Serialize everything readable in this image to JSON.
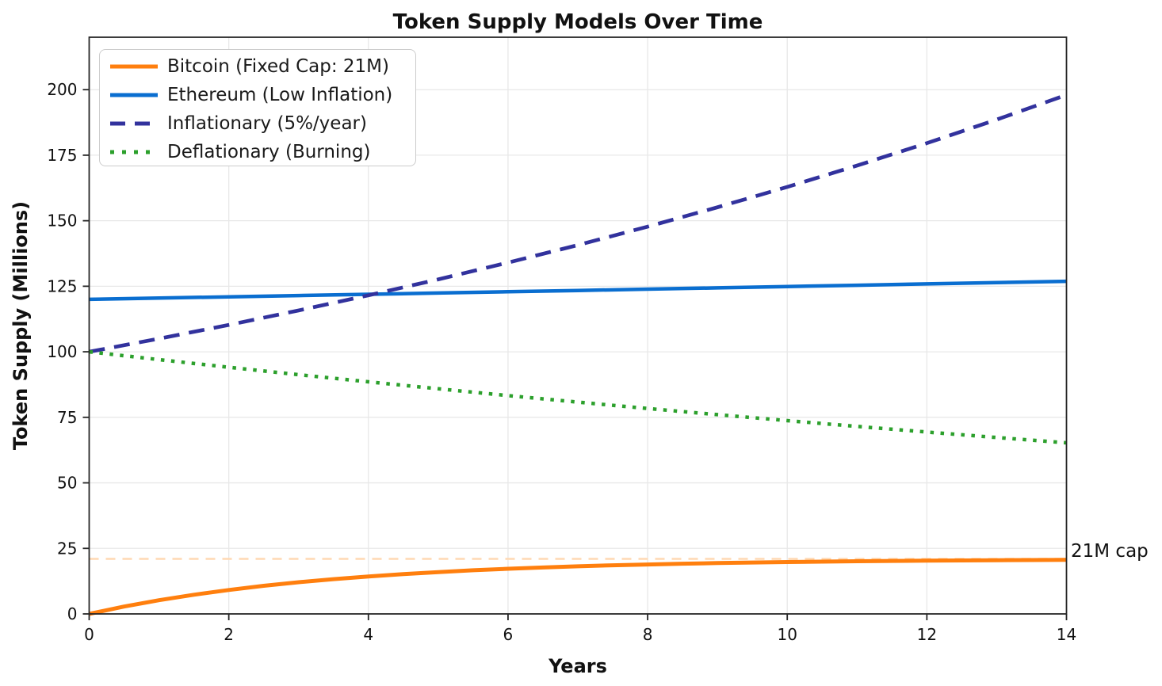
{
  "chart_data": {
    "type": "line",
    "title": "Token Supply Models Over Time",
    "xlabel": "Years",
    "ylabel": "Token Supply (Millions)",
    "xlim": [
      0,
      14
    ],
    "ylim": [
      0,
      220
    ],
    "xticks": [
      0,
      2,
      4,
      6,
      8,
      10,
      12,
      14
    ],
    "yticks": [
      0,
      25,
      50,
      75,
      100,
      125,
      150,
      175,
      200
    ],
    "grid": true,
    "grid_color": "#e8e8e8",
    "spine_color": "#262626",
    "legend_position": "upper-left",
    "series": [
      {
        "name": "Bitcoin (Fixed Cap: 21M)",
        "color": "#ff7f0e",
        "style": "solid",
        "width": 5,
        "x": [
          0,
          0.5,
          1,
          1.5,
          2,
          2.5,
          3,
          3.5,
          4,
          4.5,
          5,
          5.5,
          6,
          6.5,
          7,
          7.5,
          8,
          8.5,
          9,
          9.5,
          10,
          10.5,
          11,
          11.5,
          12,
          12.5,
          13,
          13.5,
          14
        ],
        "y": [
          0,
          2.8,
          5.22,
          7.32,
          9.14,
          10.72,
          12.09,
          13.27,
          14.3,
          15.19,
          15.97,
          16.64,
          17.22,
          17.72,
          18.16,
          18.54,
          18.86,
          19.15,
          19.39,
          19.61,
          19.79,
          19.95,
          20.09,
          20.21,
          20.32,
          20.41,
          20.49,
          20.56,
          20.62
        ]
      },
      {
        "name": "Ethereum (Low Inflation)",
        "color": "#0a6ed0",
        "style": "solid",
        "width": 4.5,
        "x": [
          0,
          1,
          2,
          3,
          4,
          5,
          6,
          7,
          8,
          9,
          10,
          11,
          12,
          13,
          14
        ],
        "y": [
          120,
          120.48,
          120.96,
          121.45,
          121.93,
          122.42,
          122.91,
          123.4,
          123.89,
          124.39,
          124.89,
          125.39,
          125.89,
          126.39,
          126.9
        ]
      },
      {
        "name": "Inflationary (5%/year)",
        "color": "#32329d",
        "style": "dashed",
        "width": 4.7,
        "x": [
          0,
          1,
          2,
          3,
          4,
          5,
          6,
          7,
          8,
          9,
          10,
          11,
          12,
          13,
          14
        ],
        "y": [
          100,
          105,
          110.25,
          115.76,
          121.55,
          127.63,
          134.01,
          140.71,
          147.75,
          155.13,
          162.89,
          171.03,
          179.59,
          188.56,
          197.99
        ]
      },
      {
        "name": "Deflationary (Burning)",
        "color": "#2ca02c",
        "style": "dotted",
        "width": 4.5,
        "x": [
          0,
          1,
          2,
          3,
          4,
          5,
          6,
          7,
          8,
          9,
          10,
          11,
          12,
          13,
          14
        ],
        "y": [
          100,
          97,
          94.09,
          91.27,
          88.53,
          85.87,
          83.3,
          80.8,
          78.37,
          76.02,
          73.74,
          71.53,
          69.38,
          67.3,
          65.28
        ]
      }
    ],
    "cap_line": {
      "y": 21,
      "color": "#ffd9b3",
      "style": "dashed",
      "label": "21M cap",
      "label_color": "#ff8c1f"
    }
  }
}
